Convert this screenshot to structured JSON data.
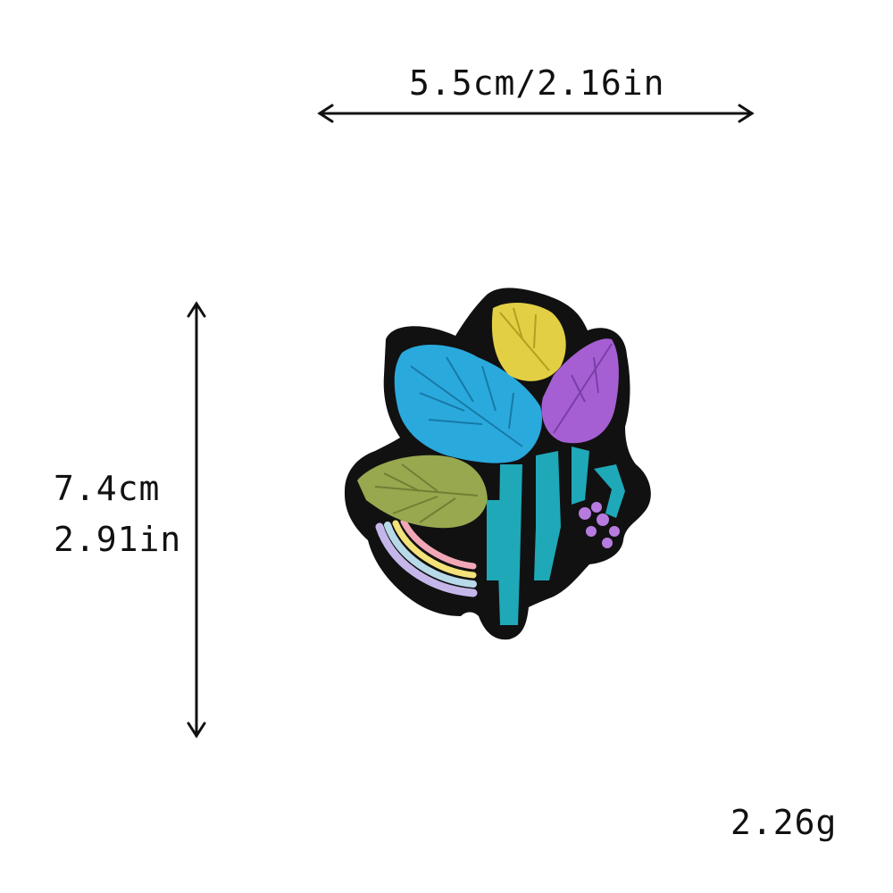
{
  "dimensions": {
    "width_label": "5.5cm/2.16in",
    "height_cm": "7.4cm",
    "height_in": "2.91in",
    "weight": "2.26g"
  },
  "colors": {
    "outline": "#111111",
    "leaf_blue": "#2aa9dd",
    "leaf_yellow": "#e2cf44",
    "leaf_purple": "#a55fd2",
    "leaf_green": "#97a84f",
    "stem_teal": "#1fa8b8",
    "rainbow": [
      "#f2a7b7",
      "#f3e27a",
      "#b8d9e8",
      "#c5b6ea"
    ]
  }
}
